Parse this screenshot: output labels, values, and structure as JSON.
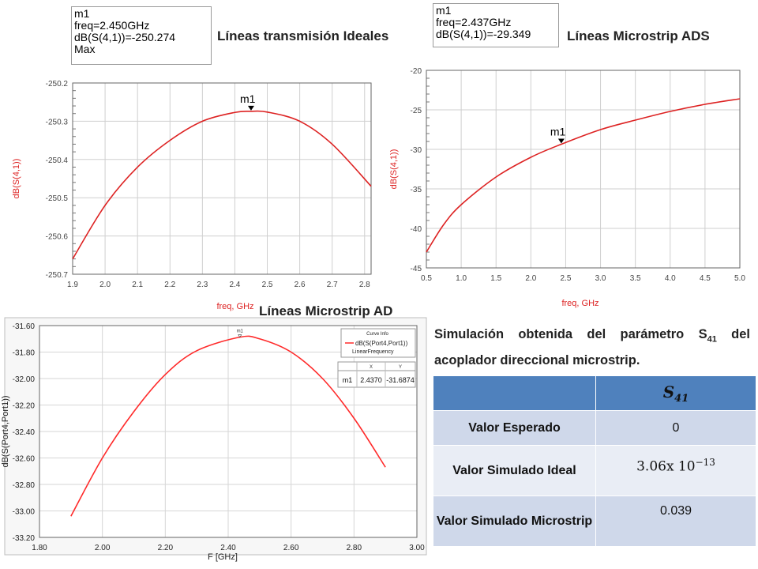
{
  "headings": {
    "ideal": "Líneas transmisión Ideales",
    "ads": "Líneas Microstrip ADS",
    "cst": "Líneas Microstrip AD"
  },
  "marker_ideal": {
    "name": "m1",
    "freq": "freq=2.450GHz",
    "value": "dB(S(4,1))=-250.274",
    "extra": "Max"
  },
  "marker_ads": {
    "name": "m1",
    "freq": "freq=2.437GHz",
    "value": "dB(S(4,1))=-29.349"
  },
  "description": {
    "line1": "Simulación obtenida del parámetro S",
    "sub": "41",
    "line2": "del acoplador direccional microstrip."
  },
  "table": {
    "header_symbol": "S",
    "header_sub": "41",
    "rows": [
      {
        "label": "Valor Esperado",
        "value": "0"
      },
      {
        "label": "Valor  Simulado Ideal",
        "value_base": "3.06x 10",
        "value_exp": "−13"
      },
      {
        "label": "Valor Simulado Microstrip",
        "value": "0.039"
      }
    ]
  },
  "chart_data": [
    {
      "type": "line",
      "title": "Líneas transmisión Ideales",
      "xlabel": "freq, GHz",
      "ylabel": "dB(S(4,1))",
      "xlim": [
        1.9,
        2.82
      ],
      "ylim": [
        -250.7,
        -250.2
      ],
      "x_ticks": [
        "1.9",
        "2.0",
        "2.1",
        "2.2",
        "2.3",
        "2.4",
        "2.5",
        "2.6",
        "2.7",
        "2.8"
      ],
      "x_tick_values": [
        1.9,
        2.0,
        2.1,
        2.2,
        2.3,
        2.4,
        2.5,
        2.6,
        2.7,
        2.8
      ],
      "y_ticks": [
        "-250.2",
        "-250.3",
        "-250.4",
        "-250.5",
        "-250.6",
        "-250.7"
      ],
      "y_tick_values": [
        -250.2,
        -250.3,
        -250.4,
        -250.5,
        -250.6,
        -250.7
      ],
      "grid": true,
      "line_color": "#dd2222",
      "series": [
        {
          "x": [
            1.9,
            2.0,
            2.1,
            2.2,
            2.3,
            2.4,
            2.45,
            2.5,
            2.6,
            2.7,
            2.82
          ],
          "y": [
            -250.66,
            -250.52,
            -250.42,
            -250.35,
            -250.3,
            -250.277,
            -250.274,
            -250.276,
            -250.3,
            -250.36,
            -250.47
          ]
        }
      ],
      "marker": {
        "label": "m1",
        "x": 2.45,
        "y": -250.274
      }
    },
    {
      "type": "line",
      "title": "Líneas Microstrip ADS",
      "xlabel": "freq, GHz",
      "ylabel": "dB(S(4,1))",
      "xlim": [
        0.5,
        5.0
      ],
      "ylim": [
        -45,
        -20
      ],
      "x_ticks": [
        "0.5",
        "1.0",
        "1.5",
        "2.0",
        "2.5",
        "3.0",
        "3.5",
        "4.0",
        "4.5",
        "5.0"
      ],
      "x_tick_values": [
        0.5,
        1.0,
        1.5,
        2.0,
        2.5,
        3.0,
        3.5,
        4.0,
        4.5,
        5.0
      ],
      "y_ticks": [
        "-20",
        "-25",
        "-30",
        "-35",
        "-40",
        "-45"
      ],
      "y_tick_values": [
        -20,
        -25,
        -30,
        -35,
        -40,
        -45
      ],
      "grid": true,
      "line_color": "#dd2222",
      "series": [
        {
          "x": [
            0.5,
            0.75,
            1.0,
            1.5,
            2.0,
            2.437,
            3.0,
            3.5,
            4.0,
            4.5,
            5.0
          ],
          "y": [
            -43.0,
            -39.5,
            -37.0,
            -33.5,
            -31.0,
            -29.35,
            -27.5,
            -26.3,
            -25.2,
            -24.3,
            -23.6
          ]
        }
      ],
      "marker": {
        "label": "m1",
        "x": 2.437,
        "y": -29.349
      }
    },
    {
      "type": "line",
      "title": "Líneas Microstrip AD",
      "xlabel": "F [GHz]",
      "ylabel": "dB(S(Port4,Port1))",
      "xlim": [
        1.8,
        3.0
      ],
      "ylim": [
        -33.2,
        -31.6
      ],
      "x_ticks": [
        "1.80",
        "2.00",
        "2.20",
        "2.40",
        "2.60",
        "2.80",
        "3.00"
      ],
      "x_tick_values": [
        1.8,
        2.0,
        2.2,
        2.4,
        2.6,
        2.8,
        3.0
      ],
      "y_ticks": [
        "-31.60",
        "-31.80",
        "-32.00",
        "-32.20",
        "-32.40",
        "-32.60",
        "-32.80",
        "-33.00",
        "-33.20"
      ],
      "y_tick_values": [
        -31.6,
        -31.8,
        -32.0,
        -32.2,
        -32.4,
        -32.6,
        -32.8,
        -33.0,
        -33.2
      ],
      "grid": true,
      "line_color": "#ff2a2a",
      "series": [
        {
          "name": "dB(S(Port4,Port1))",
          "x": [
            1.9,
            2.0,
            2.1,
            2.2,
            2.3,
            2.437,
            2.5,
            2.6,
            2.7,
            2.8,
            2.9
          ],
          "y": [
            -33.04,
            -32.6,
            -32.25,
            -31.97,
            -31.79,
            -31.6874,
            -31.7,
            -31.8,
            -32.0,
            -32.3,
            -32.67
          ]
        }
      ],
      "marker": {
        "label": "m1",
        "x": 2.437,
        "y": -31.6874
      },
      "legend": {
        "title": "Curve Info",
        "entry": "dB(S(Port4,Port1))",
        "sub": "LinearFrequency"
      },
      "marker_table": {
        "headers": [
          "",
          "X",
          "Y"
        ],
        "row": [
          "m1",
          "2.4370",
          "-31.6874"
        ]
      }
    }
  ]
}
